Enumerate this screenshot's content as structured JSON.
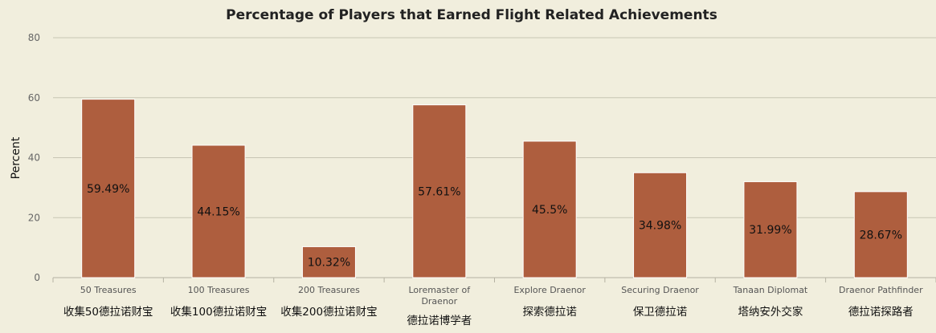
{
  "chart_data": {
    "type": "bar",
    "title": "Percentage of Players that Earned Flight Related Achievements",
    "ylabel": "Percent",
    "xlabel": "",
    "ylim": [
      0,
      80
    ],
    "yticks": [
      0,
      20,
      40,
      60,
      80
    ],
    "grid": true,
    "bar_color": "#ae5e3e",
    "categories": [
      "50 Treasures",
      "100 Treasures",
      "200 Treasures",
      "Loremaster of Draenor",
      "Explore Draenor",
      "Securing Draenor",
      "Tanaan Diplomat",
      "Draenor Pathfinder"
    ],
    "category_sublabels": [
      "收集50德拉诺财宝",
      "收集100德拉诺财宝",
      "收集200德拉诺财宝",
      "德拉诺博学者",
      "探索德拉诺",
      "保卫德拉诺",
      "塔纳安外交家",
      "德拉诺探路者"
    ],
    "values": [
      59.49,
      44.15,
      10.32,
      57.61,
      45.5,
      34.98,
      31.99,
      28.67
    ],
    "data_labels": [
      "59.49%",
      "44.15%",
      "10.32%",
      "57.61%",
      "45.5%",
      "34.98%",
      "31.99%",
      "28.67%"
    ]
  }
}
